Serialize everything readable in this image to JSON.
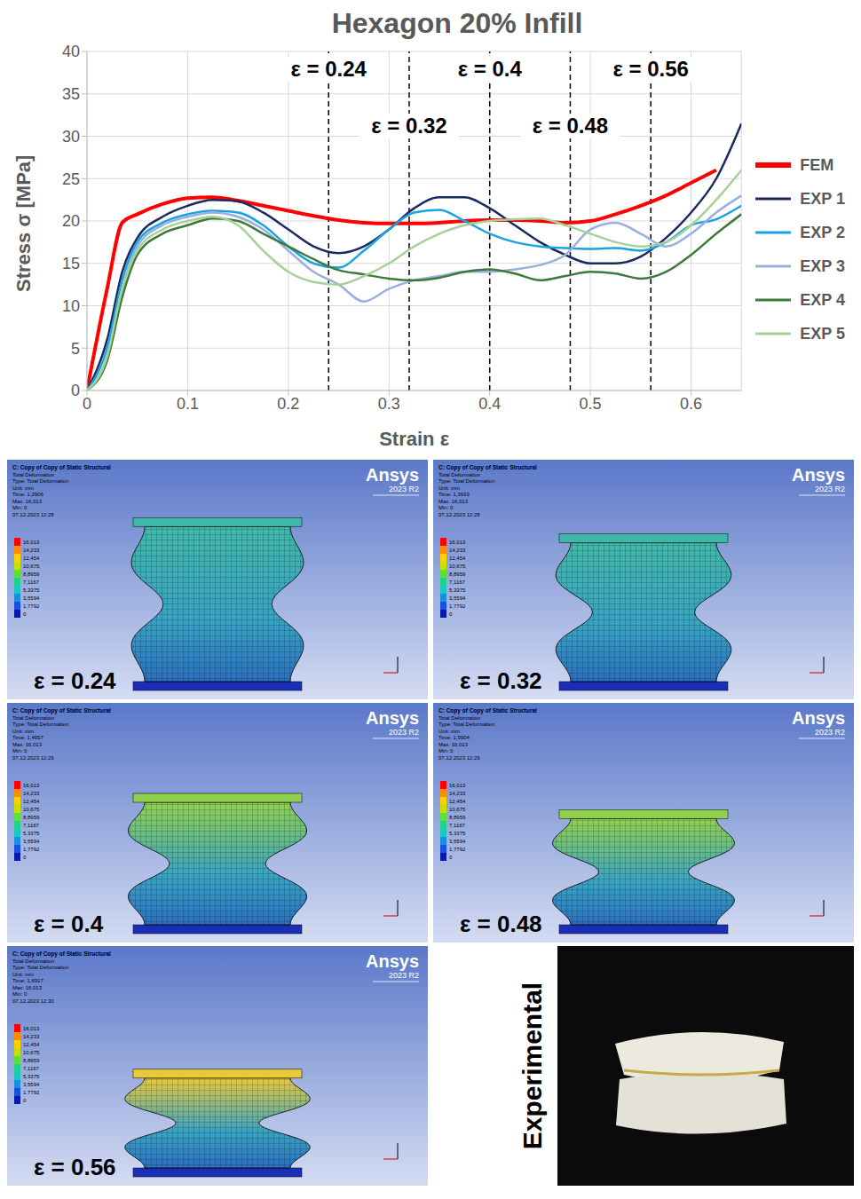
{
  "chart_data": {
    "type": "line",
    "title": "Hexagon 20% Infill",
    "x_label": "Strain ε",
    "y_label": "Stress σ [MPa]",
    "xlim": [
      0,
      0.65
    ],
    "xticks": [
      0,
      0.1,
      0.2,
      0.3,
      0.4,
      0.5,
      0.6
    ],
    "ylim": [
      0,
      40
    ],
    "yticks": [
      0,
      5,
      10,
      15,
      20,
      25,
      30,
      35,
      40
    ],
    "grid": true,
    "legend": "right",
    "x": [
      0,
      0.02,
      0.035,
      0.05,
      0.075,
      0.1,
      0.125,
      0.15,
      0.175,
      0.2,
      0.225,
      0.25,
      0.275,
      0.3,
      0.325,
      0.35,
      0.375,
      0.4,
      0.425,
      0.45,
      0.475,
      0.5,
      0.525,
      0.55,
      0.575,
      0.6,
      0.625,
      0.65
    ],
    "series": [
      {
        "name": "FEM",
        "color": "#ff0000",
        "values": [
          0,
          12,
          19.8,
          20.8,
          22,
          22.7,
          22.8,
          22.4,
          21.8,
          21.2,
          20.6,
          20.1,
          19.8,
          19.7,
          19.7,
          19.8,
          20,
          20.1,
          20.1,
          20,
          19.8,
          20,
          20.8,
          21.8,
          23,
          24.5,
          26,
          null
        ]
      },
      {
        "name": "EXP 1",
        "color": "#1b2a5e",
        "values": [
          0,
          6,
          14,
          18,
          20.5,
          21.8,
          22.5,
          22.3,
          21,
          19,
          17,
          16.2,
          17,
          19,
          21.5,
          22.8,
          22.8,
          21.5,
          19.5,
          17.5,
          16,
          15,
          15,
          15.8,
          18,
          21,
          25,
          31.5
        ]
      },
      {
        "name": "EXP 2",
        "color": "#1aa3e0",
        "values": [
          0,
          5,
          13,
          17.5,
          19.8,
          20.8,
          21.2,
          21,
          19.5,
          17,
          15,
          14.5,
          16.5,
          19,
          21,
          21.3,
          20,
          18.5,
          17.5,
          17,
          16.8,
          16.7,
          16.8,
          16.5,
          17.5,
          19.5,
          20.2,
          21.8
        ]
      },
      {
        "name": "EXP 3",
        "color": "#9aaee0",
        "values": [
          0,
          4,
          12,
          17,
          19.5,
          20.5,
          21,
          20.5,
          19,
          16.5,
          14,
          12.5,
          10.5,
          12,
          13,
          13.5,
          14,
          14,
          14.3,
          14.8,
          16,
          19,
          19.8,
          18.5,
          17,
          18.5,
          21,
          23
        ]
      },
      {
        "name": "EXP 4",
        "color": "#3d7a3a",
        "values": [
          0,
          3.5,
          11,
          16,
          18.5,
          19.5,
          20.3,
          20,
          18.5,
          17,
          15.5,
          14.2,
          13.7,
          13.2,
          13,
          13.3,
          14,
          14.3,
          13.8,
          13,
          13.5,
          14,
          13.8,
          13.2,
          14,
          16,
          18.5,
          20.8
        ]
      },
      {
        "name": "EXP 5",
        "color": "#a6d196",
        "values": [
          0,
          4,
          12,
          16.5,
          19,
          20,
          20.5,
          19.5,
          16.5,
          14,
          12.8,
          12.5,
          13.5,
          15,
          17,
          18.5,
          19.5,
          20,
          20.2,
          20.3,
          19.5,
          18.5,
          17.5,
          17,
          17.5,
          19.5,
          22.5,
          26
        ]
      }
    ],
    "annotations": [
      {
        "x": 0.24,
        "label": "ε = 0.24"
      },
      {
        "x": 0.32,
        "label": "ε = 0.32"
      },
      {
        "x": 0.4,
        "label": "ε = 0.4"
      },
      {
        "x": 0.48,
        "label": "ε = 0.48"
      },
      {
        "x": 0.56,
        "label": "ε = 0.56"
      }
    ]
  },
  "panels": [
    {
      "label": "ε = 0.24",
      "strain": 0.24,
      "header": [
        "C: Copy of Copy of Static Structural",
        "Total Deformation",
        "Type: Total Deformation",
        "Unit: mm",
        "Time: 1,2906",
        "Max: 16,013",
        "Min: 0",
        "07.12.2023 12:28"
      ]
    },
    {
      "label": "ε = 0.32",
      "strain": 0.32,
      "header": [
        "C: Copy of Copy of Static Structural",
        "Total Deformation",
        "Type: Total Deformation",
        "Unit: mm",
        "Time: 1,3933",
        "Max: 16,013",
        "Min: 0",
        "07.12.2023 12:28"
      ]
    },
    {
      "label": "ε = 0.4",
      "strain": 0.4,
      "header": [
        "C: Copy of Copy of Static Structural",
        "Total Deformation",
        "Type: Total Deformation",
        "Unit: mm",
        "Time: 1,4957",
        "Max: 16,013",
        "Min: 0",
        "07.12.2023 12:29"
      ]
    },
    {
      "label": "ε = 0.48",
      "strain": 0.48,
      "header": [
        "C: Copy of Copy of Static Structural",
        "Total Deformation",
        "Type: Total Deformation",
        "Unit: mm",
        "Time: 1,5904",
        "Max: 16,013",
        "Min: 0",
        "07.12.2023 12:29"
      ]
    },
    {
      "label": "ε = 0.56",
      "strain": 0.56,
      "header": [
        "C: Copy of Copy of Static Structural",
        "Total Deformation",
        "Type: Total Deformation",
        "Unit: mm",
        "Time: 1,6917",
        "Max: 16,013",
        "Min: 0",
        "07.12.2023 12:30"
      ]
    }
  ],
  "brand": "Ansys",
  "version": "2023 R2",
  "contour_levels": [
    "16,013",
    "14,233",
    "12,454",
    "10,675",
    "8,8959",
    "7,1167",
    "5,3375",
    "3,5594",
    "1,7792",
    "0"
  ],
  "experimental_label": "Experimental"
}
